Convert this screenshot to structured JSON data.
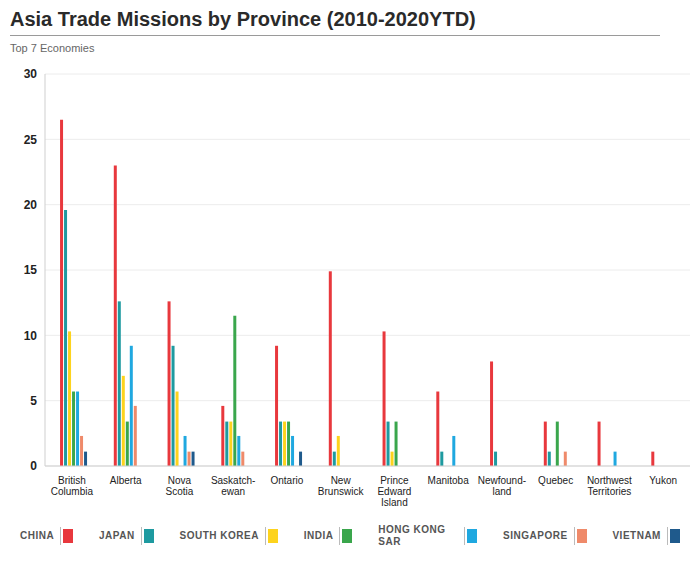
{
  "chart_data": {
    "type": "bar",
    "title": "Asia Trade Missions by Province (2010-2020YTD)",
    "subtitle": "Top 7 Economies",
    "categories": [
      "British Columbia",
      "Alberta",
      "Nova Scotia",
      "Saskatch-ewan",
      "Ontario",
      "New Brunswick",
      "Prince Edward Island",
      "Manitoba",
      "Newfound-land",
      "Quebec",
      "Northwest Territories",
      "Yukon"
    ],
    "series": [
      {
        "name": "CHINA",
        "color": "#e8383d",
        "values": [
          26.5,
          23.0,
          12.6,
          4.6,
          9.2,
          14.9,
          10.3,
          5.7,
          8.0,
          3.4,
          3.4,
          1.1
        ]
      },
      {
        "name": "JAPAN",
        "color": "#1e9aa0",
        "values": [
          19.6,
          12.6,
          9.2,
          3.4,
          3.4,
          1.1,
          3.4,
          1.1,
          1.1,
          1.1,
          0,
          0
        ]
      },
      {
        "name": "SOUTH KOREA",
        "color": "#fdd31d",
        "values": [
          10.3,
          6.9,
          5.7,
          3.4,
          3.4,
          2.3,
          1.1,
          0,
          0,
          0,
          0,
          0
        ]
      },
      {
        "name": "INDIA",
        "color": "#3aa64c",
        "values": [
          5.7,
          3.4,
          0,
          11.5,
          3.4,
          0,
          3.4,
          0,
          0,
          3.4,
          0,
          0
        ]
      },
      {
        "name": "HONG KONG SAR",
        "color": "#1fa8e0",
        "values": [
          5.7,
          9.2,
          2.3,
          2.3,
          2.3,
          0,
          0,
          2.3,
          0,
          0,
          1.1,
          0
        ]
      },
      {
        "name": "SINGAPORE",
        "color": "#ef8a6a",
        "values": [
          2.3,
          4.6,
          1.1,
          1.1,
          0,
          0,
          0,
          0,
          0,
          1.1,
          0,
          0
        ]
      },
      {
        "name": "VIETNAM",
        "color": "#1f5a8c",
        "values": [
          1.1,
          0,
          1.1,
          0,
          1.1,
          0,
          0,
          0,
          0,
          0,
          0,
          0
        ]
      }
    ],
    "ylim": [
      0,
      30
    ],
    "yticks": [
      0,
      5,
      10,
      15,
      20,
      25,
      30
    ],
    "grid": true,
    "legend": "bottom"
  }
}
